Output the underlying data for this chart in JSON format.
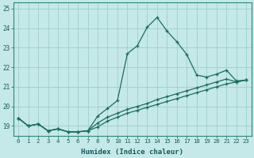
{
  "xlabel": "Humidex (Indice chaleur)",
  "ylabel": "",
  "background_color": "#c5e8e8",
  "grid_color": "#9ecece",
  "line_color": "#1a6e5e",
  "xlim": [
    -0.5,
    23.5
  ],
  "ylim": [
    18.5,
    25.3
  ],
  "yticks": [
    19,
    20,
    21,
    22,
    23,
    24,
    25
  ],
  "xticks": [
    0,
    1,
    2,
    3,
    4,
    5,
    6,
    7,
    8,
    9,
    10,
    11,
    12,
    13,
    14,
    15,
    16,
    17,
    18,
    19,
    20,
    21,
    22,
    23
  ],
  "line1_x": [
    0,
    1,
    2,
    3,
    4,
    5,
    6,
    7,
    8,
    9,
    10,
    11,
    12,
    13,
    14,
    15,
    16,
    17,
    18,
    19,
    20,
    21,
    22,
    23
  ],
  "line1_y": [
    19.4,
    19.0,
    19.1,
    18.75,
    18.85,
    18.7,
    18.7,
    18.75,
    19.5,
    19.9,
    20.3,
    22.7,
    23.1,
    24.05,
    24.55,
    23.85,
    23.3,
    22.65,
    21.6,
    21.5,
    21.65,
    21.85,
    21.3,
    21.35
  ],
  "line2_x": [
    0,
    1,
    2,
    3,
    4,
    5,
    6,
    7,
    8,
    9,
    10,
    11,
    12,
    13,
    14,
    15,
    16,
    17,
    18,
    19,
    20,
    21,
    22,
    23
  ],
  "line2_y": [
    19.4,
    19.0,
    19.1,
    18.75,
    18.85,
    18.7,
    18.7,
    18.75,
    19.15,
    19.45,
    19.65,
    19.85,
    20.0,
    20.15,
    20.35,
    20.5,
    20.65,
    20.8,
    20.95,
    21.1,
    21.25,
    21.4,
    21.25,
    21.35
  ],
  "line3_x": [
    0,
    1,
    2,
    3,
    4,
    5,
    6,
    7,
    8,
    9,
    10,
    11,
    12,
    13,
    14,
    15,
    16,
    17,
    18,
    19,
    20,
    21,
    22,
    23
  ],
  "line3_y": [
    19.4,
    19.0,
    19.1,
    18.75,
    18.85,
    18.7,
    18.7,
    18.75,
    18.95,
    19.25,
    19.45,
    19.65,
    19.8,
    19.95,
    20.1,
    20.25,
    20.4,
    20.55,
    20.7,
    20.85,
    21.0,
    21.15,
    21.25,
    21.35
  ]
}
